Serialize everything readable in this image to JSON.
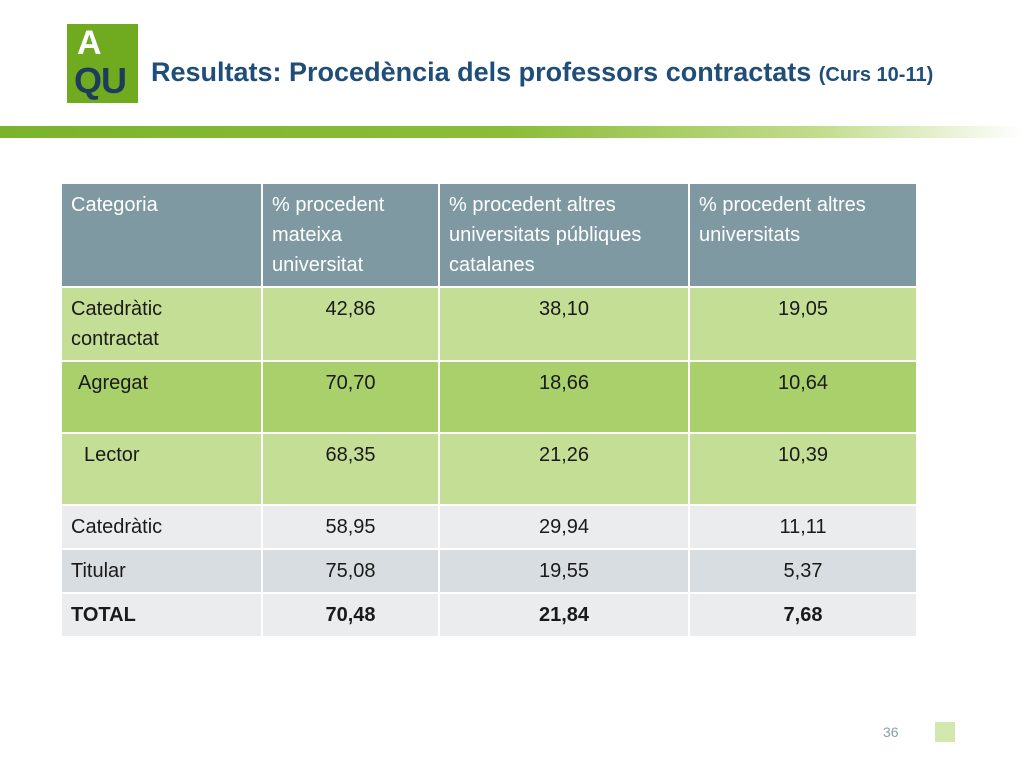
{
  "logo": {
    "line1": "A",
    "line2": "QU"
  },
  "header": {
    "title": "Resultats: Procedència dels professors contractats",
    "subtitle": "(Curs 10-11)"
  },
  "colors": {
    "logo_green": "#6faa1f",
    "logo_text_dark": "#1d3c5b",
    "title": "#1f4e79",
    "header_cell": "#7f99a3",
    "row_light_green": "#c4df95",
    "row_green": "#a9d06a",
    "row_light_grey": "#eaecee",
    "row_grey": "#d8dde1"
  },
  "table": {
    "columns": [
      "Categoria",
      "% procedent mateixa universitat",
      "% procedent altres universitats públiques catalanes",
      "% procedent altres universitats"
    ],
    "rows": [
      {
        "categoria": "Catedràtic contractat",
        "mateixa": "42,86",
        "publiques_catalanes": "38,10",
        "altres": "19,05"
      },
      {
        "categoria": "Agregat",
        "mateixa": "70,70",
        "publiques_catalanes": "18,66",
        "altres": "10,64"
      },
      {
        "categoria": "Lector",
        "mateixa": "68,35",
        "publiques_catalanes": "21,26",
        "altres": "10,39"
      },
      {
        "categoria": "Catedràtic",
        "mateixa": "58,95",
        "publiques_catalanes": "29,94",
        "altres": "11,11"
      },
      {
        "categoria": "Titular",
        "mateixa": "75,08",
        "publiques_catalanes": "19,55",
        "altres": "5,37"
      },
      {
        "categoria": "TOTAL",
        "mateixa": "70,48",
        "publiques_catalanes": "21,84",
        "altres": "7,68"
      }
    ]
  },
  "footer": {
    "page_number": "36"
  }
}
